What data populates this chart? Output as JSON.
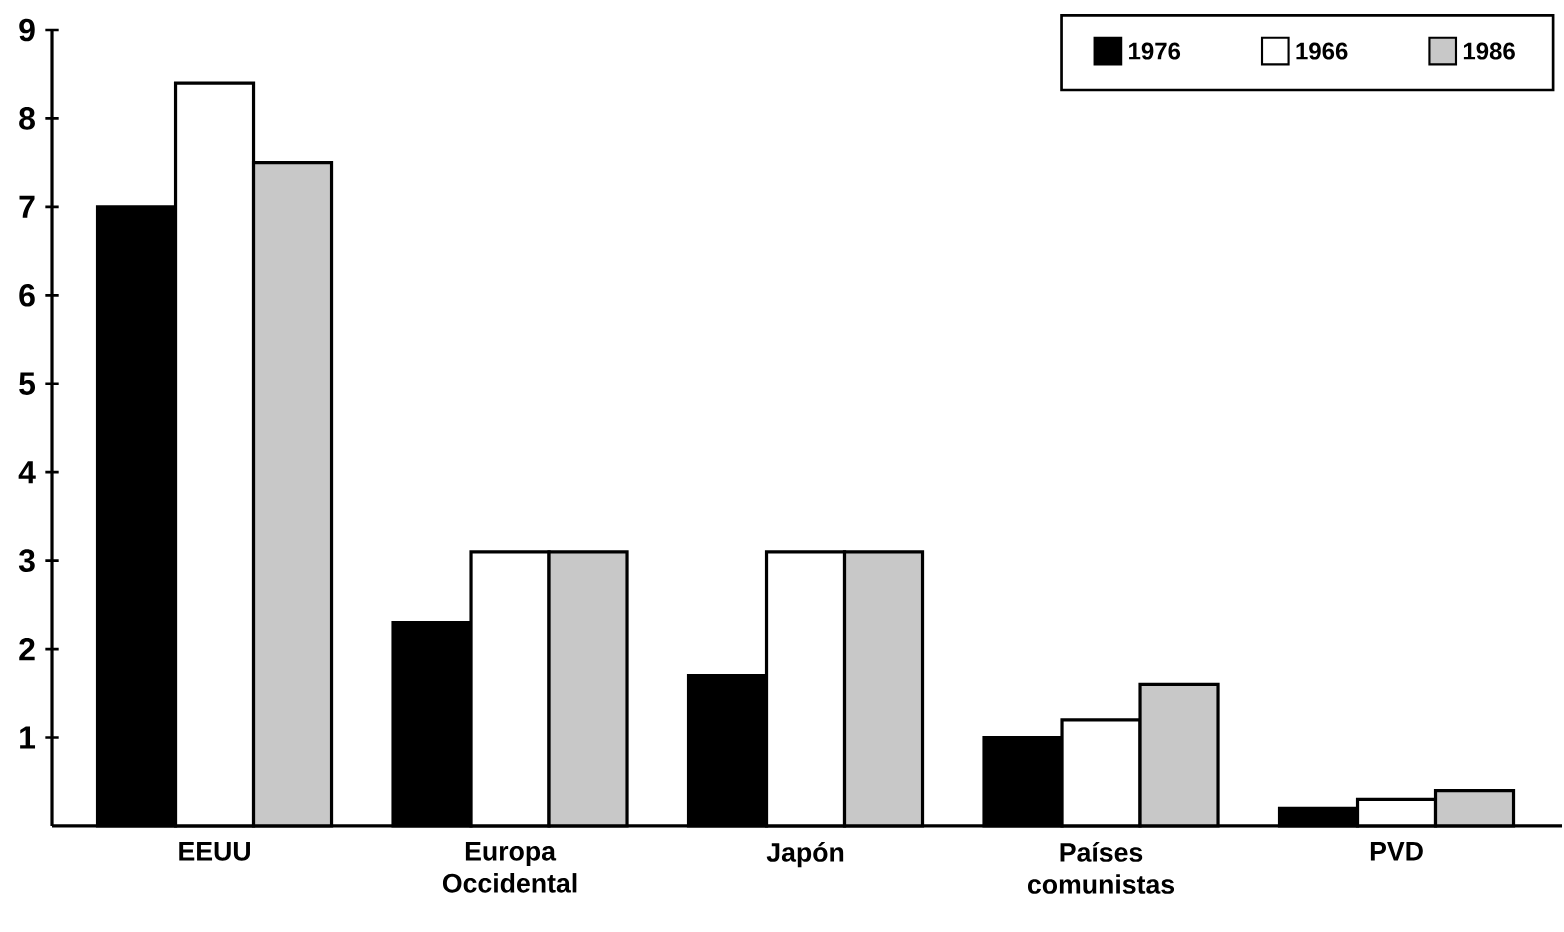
{
  "chart_data": {
    "type": "bar",
    "categories": [
      "EEUU",
      "Europa Occidental",
      "Japón",
      "Países comunistas",
      "PVD"
    ],
    "series": [
      {
        "name": "1976",
        "color": "#000000",
        "values": [
          7.0,
          2.3,
          1.7,
          1.0,
          0.2
        ]
      },
      {
        "name": "1966",
        "color": "#ffffff",
        "values": [
          8.4,
          3.1,
          3.1,
          1.2,
          0.3
        ]
      },
      {
        "name": "1986",
        "color": "#c8c8c8",
        "values": [
          7.5,
          3.1,
          3.1,
          1.6,
          0.4
        ]
      }
    ],
    "ylim": [
      0,
      9
    ],
    "yticks": [
      1,
      2,
      3,
      4,
      5,
      6,
      7,
      8,
      9
    ],
    "legend": "top right",
    "grid": false
  }
}
